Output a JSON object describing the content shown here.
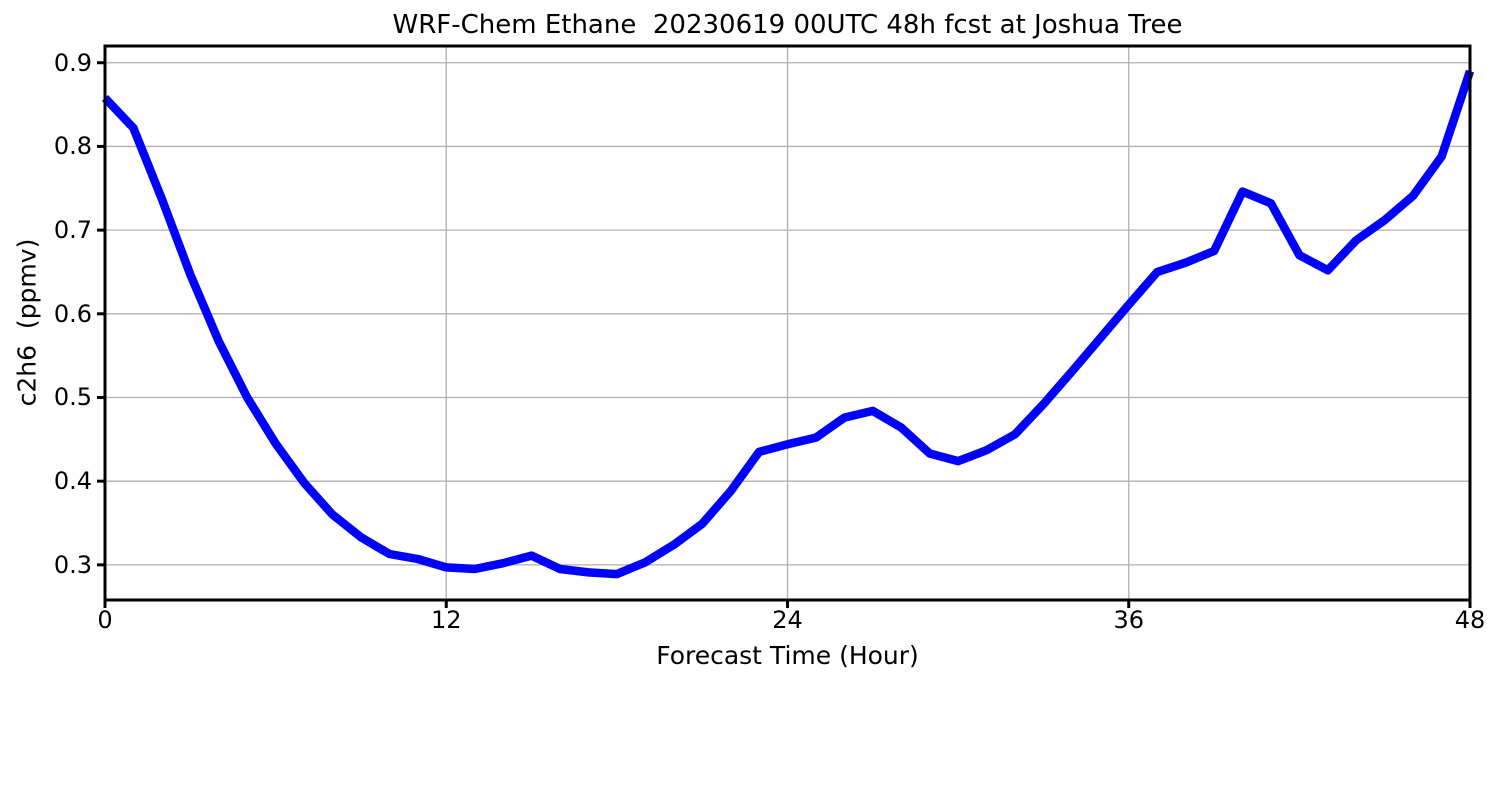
{
  "chart_data": {
    "type": "line",
    "title": "WRF-Chem Ethane  20230619 00UTC 48h fcst at Joshua Tree",
    "xlabel": "Forecast Time (Hour)",
    "ylabel": "c2h6  (ppmv)",
    "series": [
      {
        "name": "c2h6 ppmv",
        "x": [
          0,
          1,
          2,
          3,
          4,
          5,
          6,
          7,
          8,
          9,
          10,
          11,
          12,
          13,
          14,
          15,
          16,
          17,
          18,
          19,
          20,
          21,
          22,
          23,
          24,
          25,
          26,
          27,
          28,
          29,
          30,
          31,
          32,
          33,
          34,
          35,
          36,
          37,
          38,
          39,
          40,
          41,
          42,
          43,
          44,
          45,
          46,
          47,
          48
        ],
        "values": [
          0.858,
          0.822,
          0.737,
          0.647,
          0.567,
          0.5,
          0.445,
          0.398,
          0.36,
          0.333,
          0.313,
          0.307,
          0.297,
          0.295,
          0.302,
          0.311,
          0.295,
          0.291,
          0.289,
          0.303,
          0.324,
          0.349,
          0.388,
          0.435,
          0.444,
          0.452,
          0.476,
          0.484,
          0.464,
          0.433,
          0.424,
          0.437,
          0.456,
          0.492,
          0.531,
          0.571,
          0.611,
          0.65,
          0.661,
          0.675,
          0.746,
          0.732,
          0.67,
          0.652,
          0.688,
          0.712,
          0.741,
          0.788,
          0.89
        ]
      }
    ],
    "xlim": [
      0,
      48
    ],
    "ylim": [
      0.258,
      0.92
    ],
    "xticks": [
      0,
      12,
      24,
      36,
      48
    ],
    "xtick_labels": [
      "0",
      "12",
      "24",
      "36",
      "48"
    ],
    "yticks": [
      0.3,
      0.4,
      0.5,
      0.6,
      0.7,
      0.8,
      0.9
    ],
    "ytick_labels": [
      "0.3",
      "0.4",
      "0.5",
      "0.6",
      "0.7",
      "0.8",
      "0.9"
    ],
    "grid": true,
    "legend": false,
    "line_color": "#0000ff",
    "grid_color": "#b0b0b0",
    "spine_color": "#000000",
    "background_color": "#ffffff"
  }
}
